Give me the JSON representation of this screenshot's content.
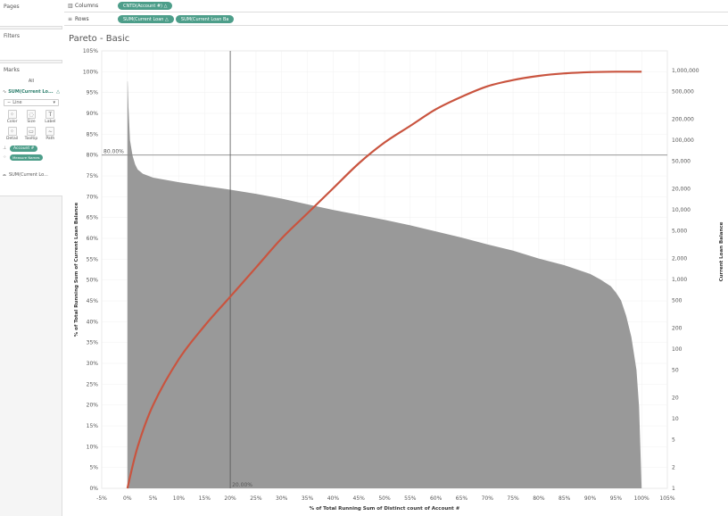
{
  "panels": {
    "pages_label": "Pages",
    "filters_label": "Filters",
    "marks_label": "Marks"
  },
  "shelves": {
    "columns_label": "Columns",
    "rows_label": "Rows",
    "columns_pills": [
      "CNTD(Account #)"
    ],
    "rows_pills": [
      "SUM(Current Loan",
      "SUM(Current Loan Ba"
    ]
  },
  "marks": {
    "all_label": "All",
    "active_measure": "SUM(Current Lo...",
    "mark_type": "Line",
    "cards": [
      {
        "label": "Color",
        "icon": "color-icon",
        "glyph": "⁘"
      },
      {
        "label": "Size",
        "icon": "size-icon",
        "glyph": "◌"
      },
      {
        "label": "Label",
        "icon": "label-icon",
        "glyph": "T"
      },
      {
        "label": "Detail",
        "icon": "detail-icon",
        "glyph": "⁘"
      },
      {
        "label": "Tooltip",
        "icon": "tooltip-icon",
        "glyph": "▭"
      },
      {
        "label": "Path",
        "icon": "path-icon",
        "glyph": "∼"
      }
    ],
    "account_pill": "Account #",
    "measure_pill": "Measure Names",
    "second_measure": "SUM(Current Lo..."
  },
  "sheet_title": "Pareto - Basic",
  "chart_data": {
    "type": "area",
    "x_axis": {
      "title": "% of Total Running Sum of Distinct count of Account #",
      "ticks": [
        "-5%",
        "0%",
        "5%",
        "10%",
        "15%",
        "20%",
        "25%",
        "30%",
        "35%",
        "40%",
        "45%",
        "50%",
        "55%",
        "60%",
        "65%",
        "70%",
        "75%",
        "80%",
        "85%",
        "90%",
        "95%",
        "100%",
        "105%"
      ],
      "range": [
        -5,
        105
      ]
    },
    "y_left_axis": {
      "title": "% of Total Running Sum of Current Loan Balance",
      "ticks": [
        "0%",
        "5%",
        "10%",
        "15%",
        "20%",
        "25%",
        "30%",
        "35%",
        "40%",
        "45%",
        "50%",
        "55%",
        "60%",
        "65%",
        "70%",
        "75%",
        "80%",
        "85%",
        "90%",
        "95%",
        "100%",
        "105%"
      ],
      "range": [
        0,
        105
      ]
    },
    "y_right_axis": {
      "title": "Current Loan Balance",
      "scale": "log",
      "ticks": [
        "1",
        "2",
        "5",
        "10",
        "20",
        "50",
        "100",
        "200",
        "500",
        "1,000",
        "2,000",
        "5,000",
        "10,000",
        "20,000",
        "50,000",
        "100,000",
        "200,000",
        "500,000",
        "1,000,000"
      ],
      "range": [
        1,
        1000000
      ]
    },
    "reference_lines": {
      "horizontal_label": "80.00%",
      "horizontal_value": 80,
      "vertical_label": "20.00%",
      "vertical_value": 20
    },
    "curve": {
      "name": "% of Total Running Sum of Current Loan Balance",
      "color": "#c9543f",
      "x": [
        0,
        2,
        5,
        10,
        15,
        20,
        25,
        30,
        35,
        40,
        45,
        50,
        55,
        60,
        65,
        70,
        75,
        80,
        85,
        90,
        95,
        100
      ],
      "y": [
        0,
        10,
        20,
        31,
        39,
        46,
        53,
        60,
        66,
        72,
        78,
        83,
        87,
        91,
        94,
        96.5,
        98,
        99,
        99.6,
        99.9,
        100,
        100
      ]
    },
    "area": {
      "name": "Current Loan Balance",
      "color": "#999999",
      "x": [
        0,
        0.05,
        0.2,
        0.5,
        1,
        1.5,
        2,
        3,
        5,
        10,
        15,
        20,
        25,
        30,
        35,
        40,
        45,
        50,
        55,
        60,
        65,
        70,
        75,
        80,
        85,
        90,
        92,
        94,
        95,
        96,
        97,
        98,
        99,
        99.5,
        99.8,
        100
      ],
      "y": [
        700000,
        700000,
        300000,
        100000,
        60000,
        45000,
        38000,
        33000,
        29000,
        25000,
        22000,
        19500,
        17000,
        14500,
        12000,
        10000,
        8500,
        7200,
        6000,
        4900,
        4000,
        3200,
        2600,
        2000,
        1600,
        1200,
        1000,
        800,
        650,
        500,
        300,
        150,
        50,
        15,
        3,
        1
      ]
    }
  }
}
